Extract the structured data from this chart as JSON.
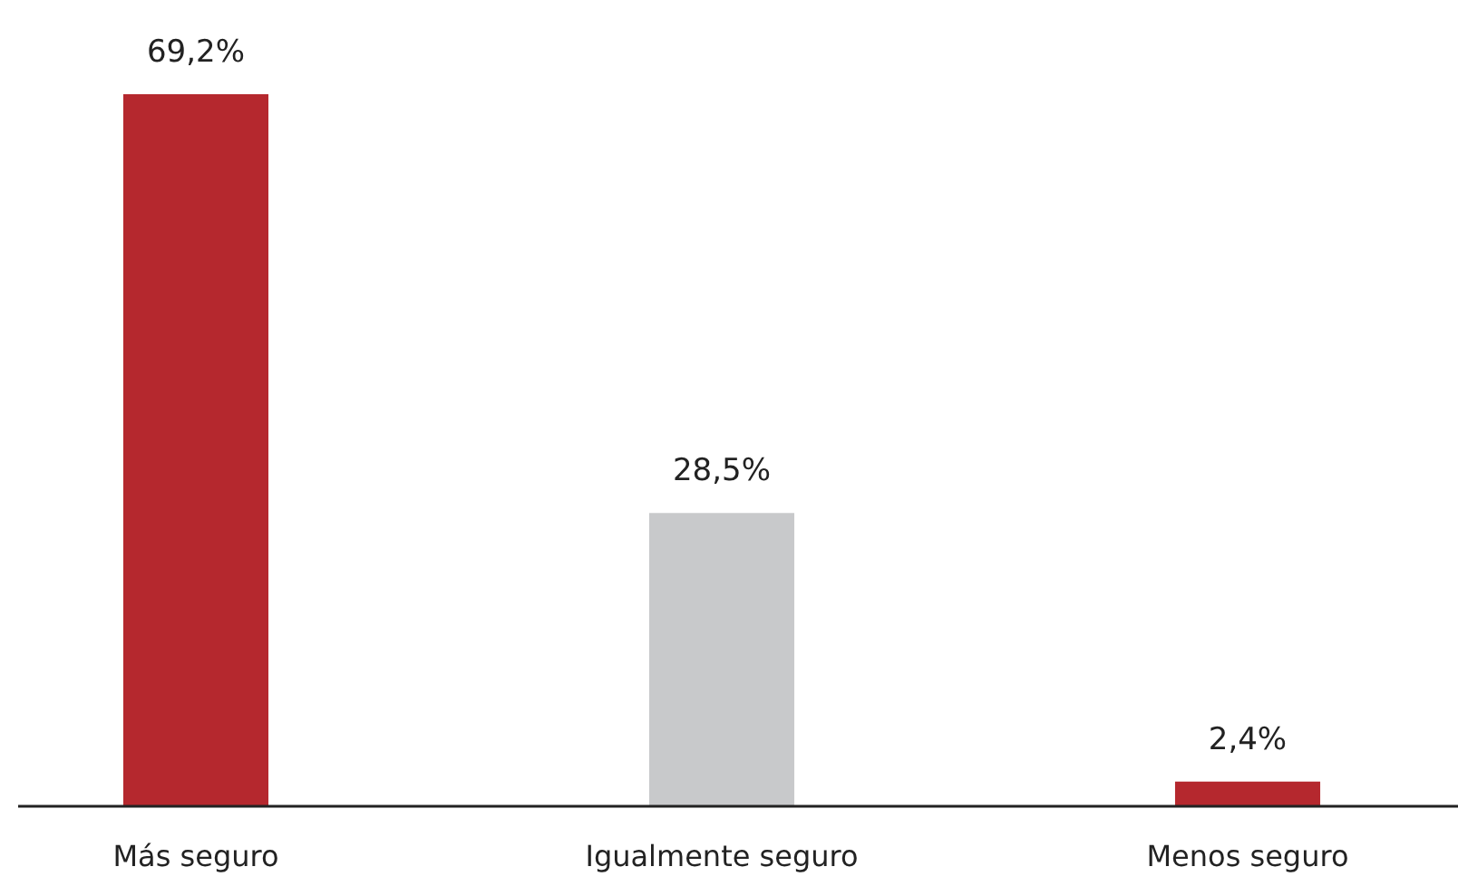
{
  "chart_data": {
    "type": "bar",
    "categories": [
      "Más seguro",
      "Igualmente seguro",
      "Menos seguro"
    ],
    "values": [
      69.2,
      28.5,
      2.4
    ],
    "colors": [
      "#b5282e",
      "#c8c9cb",
      "#b5282e"
    ],
    "value_labels": [
      "69,2%",
      "28,5%",
      "2,4%"
    ]
  }
}
